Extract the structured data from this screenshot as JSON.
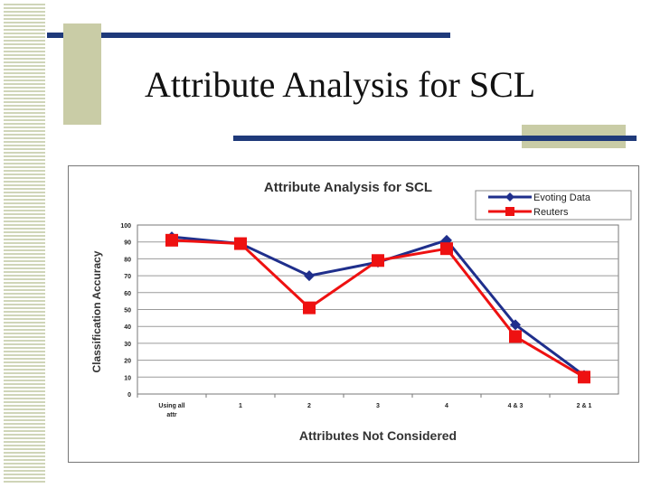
{
  "slide": {
    "title": "Attribute Analysis for SCL"
  },
  "colors": {
    "navy": "#1f3a7a",
    "olive": "#c9cca6",
    "evoting": "#1f2f8c",
    "reuters": "#ee1111"
  },
  "chart_data": {
    "type": "line",
    "title": "Attribute Analysis for SCL",
    "xlabel": "Attributes Not Considered",
    "ylabel": "Classification Accuracy",
    "categories": [
      [
        "Using all",
        "attr"
      ],
      [
        "1"
      ],
      [
        "2"
      ],
      [
        "3"
      ],
      [
        "4"
      ],
      [
        "4 & 3"
      ],
      [
        "2 & 1"
      ]
    ],
    "series": [
      {
        "name": "Evoting Data",
        "values": [
          93,
          89,
          70,
          78,
          91,
          41,
          11
        ],
        "color": "#1f2f8c",
        "marker": "diamond"
      },
      {
        "name": "Reuters",
        "values": [
          91,
          89,
          51,
          79,
          86,
          34,
          10
        ],
        "color": "#ee1111",
        "marker": "square"
      }
    ],
    "ylim": [
      0,
      100
    ],
    "yticks": [
      "0",
      "10",
      "20",
      "30",
      "40",
      "50",
      "60",
      "70",
      "80",
      "90",
      "100"
    ],
    "grid": true,
    "legend": "top-right"
  }
}
